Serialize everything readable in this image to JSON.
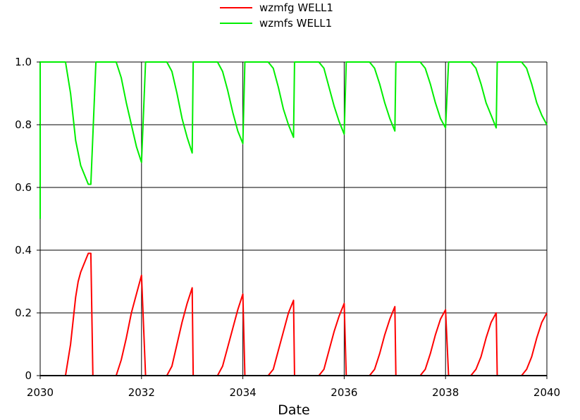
{
  "chart_data": {
    "type": "line",
    "xlabel": "Date",
    "ylabel": "",
    "xlim": [
      2030,
      2040
    ],
    "ylim": [
      0,
      1.0
    ],
    "x_ticks": [
      "2030",
      "2032",
      "2034",
      "2036",
      "2038",
      "2040"
    ],
    "y_ticks": [
      "0",
      "0.2",
      "0.4",
      "0.6",
      "0.8",
      "1.0"
    ],
    "grid": true,
    "legend_position": "top-center",
    "series": [
      {
        "name": "wzmfg WELL1",
        "color": "#ff0000",
        "x": [
          2030.0,
          2030.5,
          2030.6,
          2030.7,
          2030.75,
          2030.8,
          2030.9,
          2030.95,
          2031.0,
          2031.04,
          2031.1,
          2031.5,
          2031.6,
          2031.7,
          2031.8,
          2031.9,
          2032.0,
          2032.08,
          2032.5,
          2032.6,
          2032.7,
          2032.8,
          2032.9,
          2033.0,
          2033.02,
          2033.5,
          2033.6,
          2033.7,
          2033.8,
          2033.9,
          2034.0,
          2034.04,
          2034.5,
          2034.6,
          2034.7,
          2034.8,
          2034.9,
          2035.0,
          2035.02,
          2035.5,
          2035.6,
          2035.7,
          2035.8,
          2035.9,
          2036.0,
          2036.04,
          2036.5,
          2036.6,
          2036.7,
          2036.8,
          2036.9,
          2037.0,
          2037.02,
          2037.5,
          2037.6,
          2037.7,
          2037.8,
          2037.9,
          2038.0,
          2038.06,
          2038.5,
          2038.6,
          2038.7,
          2038.8,
          2038.9,
          2039.0,
          2039.02,
          2039.5,
          2039.6,
          2039.7,
          2039.8,
          2039.9,
          2040.0
        ],
        "y": [
          0.0,
          0.0,
          0.1,
          0.25,
          0.3,
          0.33,
          0.37,
          0.39,
          0.39,
          0.0,
          0.0,
          0.0,
          0.05,
          0.12,
          0.2,
          0.26,
          0.32,
          0.0,
          0.0,
          0.03,
          0.1,
          0.17,
          0.23,
          0.28,
          0.0,
          0.0,
          0.03,
          0.09,
          0.15,
          0.21,
          0.26,
          0.0,
          0.0,
          0.02,
          0.08,
          0.14,
          0.2,
          0.24,
          0.0,
          0.0,
          0.02,
          0.08,
          0.14,
          0.19,
          0.23,
          0.0,
          0.0,
          0.02,
          0.07,
          0.13,
          0.18,
          0.22,
          0.0,
          0.0,
          0.02,
          0.07,
          0.13,
          0.18,
          0.21,
          0.0,
          0.0,
          0.02,
          0.06,
          0.12,
          0.17,
          0.2,
          0.0,
          0.0,
          0.02,
          0.06,
          0.12,
          0.17,
          0.2
        ]
      },
      {
        "name": "wzmfs WELL1",
        "color": "#00ee00",
        "x": [
          2030.0,
          2030.0,
          2030.02,
          2030.5,
          2030.6,
          2030.7,
          2030.8,
          2030.9,
          2030.95,
          2031.0,
          2031.1,
          2031.5,
          2031.6,
          2031.7,
          2031.8,
          2031.9,
          2032.0,
          2032.08,
          2032.5,
          2032.6,
          2032.7,
          2032.8,
          2032.9,
          2033.0,
          2033.02,
          2033.5,
          2033.6,
          2033.7,
          2033.8,
          2033.9,
          2034.0,
          2034.04,
          2034.5,
          2034.6,
          2034.7,
          2034.8,
          2034.9,
          2035.0,
          2035.02,
          2035.5,
          2035.6,
          2035.7,
          2035.8,
          2035.9,
          2036.0,
          2036.04,
          2036.5,
          2036.6,
          2036.7,
          2036.8,
          2036.9,
          2037.0,
          2037.02,
          2037.5,
          2037.6,
          2037.7,
          2037.8,
          2037.9,
          2038.0,
          2038.06,
          2038.5,
          2038.6,
          2038.7,
          2038.8,
          2038.9,
          2039.0,
          2039.02,
          2039.5,
          2039.6,
          2039.7,
          2039.8,
          2039.9,
          2040.0
        ],
        "y": [
          0.5,
          1.0,
          1.0,
          1.0,
          0.9,
          0.75,
          0.67,
          0.63,
          0.61,
          0.61,
          1.0,
          1.0,
          0.95,
          0.87,
          0.8,
          0.73,
          0.68,
          1.0,
          1.0,
          0.97,
          0.9,
          0.82,
          0.76,
          0.71,
          1.0,
          1.0,
          0.97,
          0.91,
          0.84,
          0.78,
          0.74,
          1.0,
          1.0,
          0.98,
          0.92,
          0.85,
          0.8,
          0.76,
          1.0,
          1.0,
          0.98,
          0.92,
          0.86,
          0.81,
          0.77,
          1.0,
          1.0,
          0.98,
          0.93,
          0.87,
          0.82,
          0.78,
          1.0,
          1.0,
          0.98,
          0.93,
          0.87,
          0.82,
          0.79,
          1.0,
          1.0,
          0.98,
          0.93,
          0.87,
          0.83,
          0.79,
          1.0,
          1.0,
          0.98,
          0.93,
          0.87,
          0.83,
          0.8
        ]
      }
    ]
  }
}
